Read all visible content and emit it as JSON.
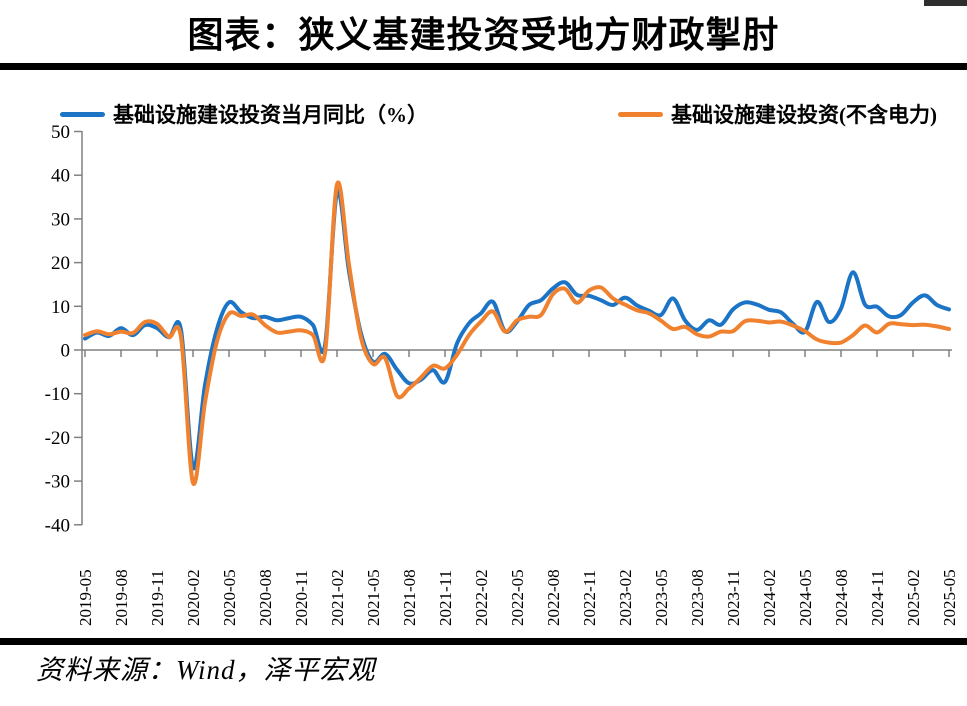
{
  "title": "图表：狭义基建投资受地方财政掣肘",
  "source": "资料来源：Wind，泽平宏观",
  "legend": [
    {
      "label": "基础设施建设投资当月同比（%）",
      "color": "#1b74c5"
    },
    {
      "label": "基础设施建设投资(不含电力)",
      "color": "#f0812e"
    }
  ],
  "colors": {
    "axis": "#808080",
    "rule": "#000000",
    "blue": "#1b74c5",
    "orange": "#f0812e"
  },
  "chart_data": {
    "type": "line",
    "title": "图表：狭义基建投资受地方财政掣肘",
    "xlabel": "",
    "ylabel": "",
    "ylim": [
      -40,
      50
    ],
    "y_ticks": [
      50,
      40,
      30,
      20,
      10,
      0,
      -10,
      -20,
      -30,
      -40
    ],
    "grid": false,
    "legend_position": "top",
    "x": [
      "2019-05",
      "2019-06",
      "2019-07",
      "2019-08",
      "2019-09",
      "2019-10",
      "2019-11",
      "2019-12",
      "2020-01",
      "2020-02",
      "2020-03",
      "2020-04",
      "2020-05",
      "2020-06",
      "2020-07",
      "2020-08",
      "2020-09",
      "2020-10",
      "2020-11",
      "2020-12",
      "2021-01",
      "2021-02",
      "2021-03",
      "2021-04",
      "2021-05",
      "2021-06",
      "2021-07",
      "2021-08",
      "2021-09",
      "2021-10",
      "2021-11",
      "2021-12",
      "2022-01",
      "2022-02",
      "2022-03",
      "2022-04",
      "2022-05",
      "2022-06",
      "2022-07",
      "2022-08",
      "2022-09",
      "2022-10",
      "2022-11",
      "2022-12",
      "2023-01",
      "2023-02",
      "2023-03",
      "2023-04",
      "2023-05",
      "2023-06",
      "2023-07",
      "2023-08",
      "2023-09",
      "2023-10",
      "2023-11",
      "2023-12",
      "2024-01",
      "2024-02",
      "2024-03",
      "2024-04",
      "2024-05",
      "2024-06",
      "2024-07",
      "2024-08",
      "2024-09",
      "2024-10",
      "2024-11",
      "2024-12",
      "2025-01",
      "2025-02",
      "2025-03",
      "2025-04",
      "2025-05"
    ],
    "x_tick_labels": [
      "2019-05",
      "2019-08",
      "2019-11",
      "2020-02",
      "2020-05",
      "2020-08",
      "2020-11",
      "2021-02",
      "2021-05",
      "2021-08",
      "2021-11",
      "2022-02",
      "2022-05",
      "2022-08",
      "2022-11",
      "2023-02",
      "2023-05",
      "2023-08",
      "2023-11",
      "2024-02",
      "2024-05",
      "2024-08",
      "2024-11",
      "2025-02",
      "2025-05"
    ],
    "series": [
      {
        "name": "基础设施建设投资当月同比（%）",
        "color": "#1b74c5",
        "values": [
          2.6,
          4.0,
          3.2,
          5.0,
          3.4,
          5.7,
          5.0,
          2.9,
          4.6,
          -26.9,
          -8.0,
          4.8,
          10.9,
          8.7,
          7.3,
          7.6,
          6.8,
          7.3,
          7.6,
          5.7,
          1.1,
          36.1,
          18.0,
          3.8,
          -2.7,
          -0.9,
          -4.5,
          -7.6,
          -6.8,
          -4.6,
          -7.3,
          1.5,
          6.1,
          8.4,
          11.0,
          4.3,
          6.5,
          10.3,
          11.4,
          14.1,
          15.5,
          12.6,
          12.4,
          11.4,
          10.3,
          12.0,
          10.2,
          9.0,
          8.0,
          11.8,
          6.8,
          4.6,
          6.8,
          5.8,
          9.3,
          10.9,
          10.4,
          9.2,
          8.6,
          6.0,
          4.2,
          11.0,
          6.4,
          9.5,
          17.8,
          10.4,
          9.9,
          7.7,
          8.0,
          10.9,
          12.5,
          10.3,
          9.3
        ]
      },
      {
        "name": "基础设施建设投资(不含电力)",
        "color": "#f0812e",
        "values": [
          3.4,
          4.3,
          3.6,
          4.2,
          3.9,
          6.4,
          6.0,
          3.0,
          2.9,
          -30.4,
          -12.0,
          2.0,
          8.3,
          7.8,
          8.1,
          5.7,
          4.0,
          4.2,
          4.5,
          3.4,
          -0.7,
          37.9,
          19.5,
          2.8,
          -3.2,
          -1.8,
          -10.5,
          -8.8,
          -6.3,
          -3.6,
          -4.2,
          -1.1,
          3.4,
          6.5,
          8.8,
          4.2,
          6.8,
          7.6,
          8.0,
          12.8,
          14.0,
          10.8,
          13.6,
          14.3,
          11.8,
          10.4,
          9.1,
          8.4,
          6.7,
          4.8,
          5.3,
          3.6,
          3.1,
          4.2,
          4.3,
          6.6,
          6.7,
          6.3,
          6.5,
          5.6,
          4.3,
          2.4,
          1.7,
          1.7,
          3.4,
          5.6,
          4.0,
          6.0,
          5.9,
          5.7,
          5.8,
          5.4,
          4.8
        ]
      }
    ]
  }
}
